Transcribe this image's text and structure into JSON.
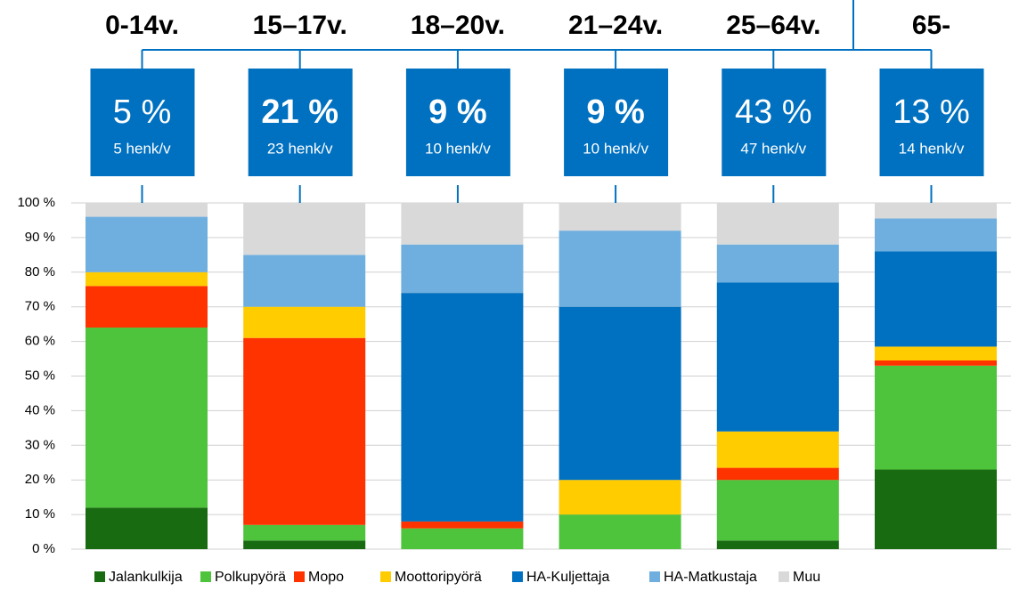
{
  "chart_data": {
    "type": "stacked_bar",
    "categories": [
      "0-14v.",
      "15–17v.",
      "18–20v.",
      "21–24v.",
      "25–64v.",
      "65-"
    ],
    "annotations": [
      {
        "share": "5 %",
        "persons": "5 henk/v",
        "bold": false
      },
      {
        "share": "21 %",
        "persons": "23 henk/v",
        "bold": true
      },
      {
        "share": "9 %",
        "persons": "10 henk/v",
        "bold": true
      },
      {
        "share": "9 %",
        "persons": "10 henk/v",
        "bold": true
      },
      {
        "share": "43 %",
        "persons": "47 henk/v",
        "bold": false
      },
      {
        "share": "13 %",
        "persons": "14 henk/v",
        "bold": false
      }
    ],
    "series": [
      {
        "name": "Jalankulkija",
        "color": "#186b10",
        "values": [
          12,
          2.5,
          0,
          0,
          2.5,
          23
        ]
      },
      {
        "name": "Polkupyörä",
        "color": "#4ec33c",
        "values": [
          52,
          4.5,
          6,
          10,
          17.5,
          30
        ]
      },
      {
        "name": "Mopo",
        "color": "#ff3300",
        "values": [
          12,
          54,
          2,
          0,
          3.5,
          1.5
        ]
      },
      {
        "name": "Moottoripyörä",
        "color": "#ffcc00",
        "values": [
          4,
          9,
          0,
          10,
          10.5,
          4
        ]
      },
      {
        "name": "HA-Kuljettaja",
        "color": "#0070c0",
        "values": [
          0,
          0,
          66,
          50,
          43,
          27.5
        ]
      },
      {
        "name": "HA-Matkustaja",
        "color": "#6fafdf",
        "values": [
          16,
          15,
          14,
          22,
          11,
          9.5
        ]
      },
      {
        "name": "Muu",
        "color": "#d9d9d9",
        "values": [
          4,
          15,
          12,
          8,
          12,
          4.5
        ]
      }
    ],
    "ylim": [
      0,
      100
    ],
    "yticks": [
      {
        "value": 0,
        "label": "0 %"
      },
      {
        "value": 10,
        "label": "10 %"
      },
      {
        "value": 20,
        "label": "20 %"
      },
      {
        "value": 30,
        "label": "30 %"
      },
      {
        "value": 40,
        "label": "40 %"
      },
      {
        "value": 50,
        "label": "50 %"
      },
      {
        "value": 60,
        "label": "60 %"
      },
      {
        "value": 70,
        "label": "70 %"
      },
      {
        "value": 80,
        "label": "80 %"
      },
      {
        "value": 90,
        "label": "90 %"
      },
      {
        "value": 100,
        "label": "100 %"
      }
    ],
    "grid": true,
    "legend": "bottom"
  }
}
